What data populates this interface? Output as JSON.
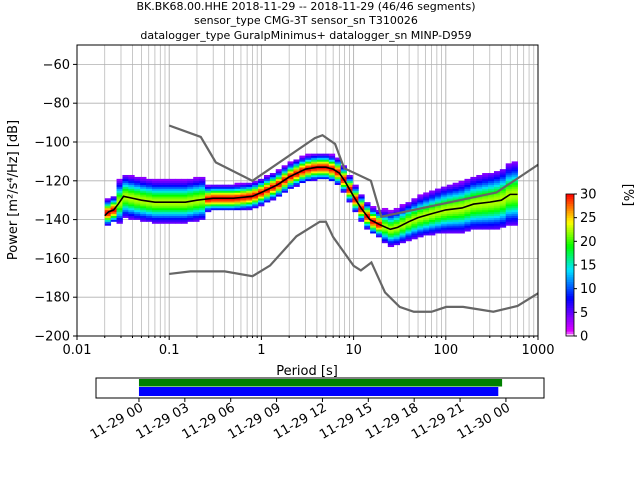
{
  "chart_data": {
    "type": "heatmap",
    "title_lines": [
      "BK.BK68.00.HHE   2018-11-29 -- 2018-11-29  (46/46 segments)",
      "sensor_type CMG-3T sensor_sn T310026",
      "datalogger_type GuralpMinimus+ datalogger_sn MINP-D959"
    ],
    "xlabel": "Period [s]",
    "ylabel": "Power [m²/s⁴/Hz] [dB]",
    "x_scale": "log",
    "xlim": [
      0.01,
      1000
    ],
    "ylim": [
      -200,
      -50
    ],
    "grid": true,
    "x_tick_labels": [
      "0.01",
      "0.1",
      "1",
      "10",
      "100",
      "1000"
    ],
    "y_ticks": [
      -60,
      -80,
      -100,
      -120,
      -140,
      -160,
      -180,
      -200
    ],
    "y_tick_labels": [
      "−60",
      "−80",
      "−100",
      "−120",
      "−140",
      "−160",
      "−180",
      "−200"
    ],
    "colorbar": {
      "label": "[%]",
      "range": [
        0,
        30
      ],
      "ticks": [
        0,
        5,
        10,
        15,
        20,
        25,
        30
      ],
      "colors": [
        "#ffffff",
        "#e100ff",
        "#0000ff",
        "#00e5ff",
        "#00ff00",
        "#ffff00",
        "#ff0000"
      ]
    },
    "nhnm": {
      "x": [
        0.1,
        0.22,
        0.32,
        0.8,
        3.8,
        4.6,
        6.3,
        7.9,
        15.4,
        20,
        354.8,
        10000
      ],
      "y": [
        -91.5,
        -97.4,
        -110.5,
        -120,
        -98,
        -96.5,
        -101,
        -113.5,
        -120,
        -138.5,
        -126,
        -80
      ]
    },
    "nlnm": {
      "x": [
        0.1,
        0.17,
        0.4,
        0.8,
        1.24,
        2.4,
        4.3,
        5.0,
        6.0,
        10.0,
        12.0,
        15.6,
        21.9,
        31.6,
        45,
        70,
        101,
        154,
        328,
        600,
        1000
      ],
      "y": [
        -168,
        -166.7,
        -166.7,
        -169.2,
        -163.7,
        -148.6,
        -141.1,
        -141.1,
        -149,
        -163.8,
        -166.2,
        -162.1,
        -177.5,
        -185,
        -187.5,
        -187.5,
        -185,
        -185,
        -187.5,
        -184.5,
        -178
      ]
    },
    "mean_curve": {
      "x": [
        0.02,
        0.022,
        0.025,
        0.028,
        0.032,
        0.04,
        0.05,
        0.07,
        0.1,
        0.15,
        0.2,
        0.3,
        0.5,
        0.8,
        1.0,
        1.5,
        2,
        3,
        4,
        5,
        6,
        7,
        8,
        10,
        12,
        15,
        20,
        25,
        30,
        40,
        50,
        70,
        100,
        150,
        200,
        300,
        400,
        500,
        600
      ],
      "y": [
        -138,
        -136,
        -135,
        -132,
        -128,
        -129,
        -130,
        -131,
        -131,
        -131,
        -130,
        -129,
        -129,
        -128,
        -126,
        -122,
        -118,
        -114,
        -113,
        -113,
        -114,
        -116,
        -120,
        -128,
        -134,
        -140,
        -143,
        -145,
        -144,
        -141,
        -139,
        -137,
        -135,
        -134,
        -132,
        -131,
        -130,
        -127,
        -127
      ]
    },
    "time_axis": {
      "tick_labels": [
        "11-29 00",
        "11-29 03",
        "11-29 06",
        "11-29 09",
        "11-29 12",
        "11-29 15",
        "11-29 18",
        "11-29 21",
        "11-30 00"
      ],
      "coverage_green": [
        0.0,
        23.75
      ],
      "coverage_blue": [
        0.0,
        23.5
      ],
      "colors": {
        "green": "#008000",
        "blue": "#0000ff"
      }
    }
  }
}
